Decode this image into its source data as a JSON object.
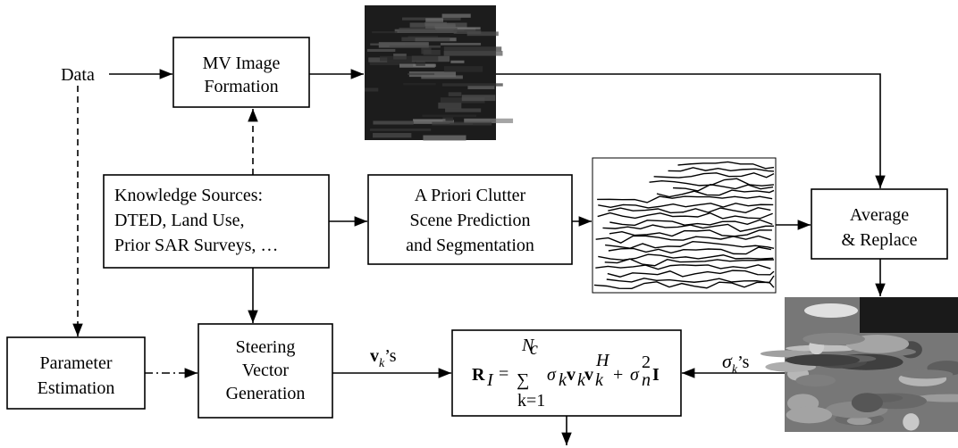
{
  "nodes": {
    "data": {
      "label": "Data"
    },
    "mv": {
      "lines": [
        "MV Image",
        "Formation"
      ]
    },
    "ks": {
      "lines": [
        "Knowledge Sources:",
        "DTED, Land Use,",
        "Prior SAR Surveys, …"
      ]
    },
    "apriori": {
      "lines": [
        "A Priori Clutter",
        "Scene Prediction",
        "and Segmentation"
      ]
    },
    "avg": {
      "lines": [
        "Average",
        "& Replace"
      ]
    },
    "param": {
      "lines": [
        "Parameter",
        "Estimation"
      ]
    },
    "steer": {
      "lines": [
        "Steering",
        "Vector",
        "Generation"
      ]
    }
  },
  "edge_labels": {
    "v": {
      "base": "v",
      "sub": "k",
      "suffix": "’s"
    },
    "sigma": {
      "base": "σ",
      "sub": "k",
      "suffix": "’s"
    }
  },
  "formula": {
    "parts": [
      "R",
      "I",
      "=",
      "∑",
      "N",
      "c",
      "k=1",
      "σ",
      "k",
      "v",
      "k",
      "v",
      "k",
      "H",
      "+",
      "σ",
      "n",
      "2",
      "I"
    ]
  }
}
